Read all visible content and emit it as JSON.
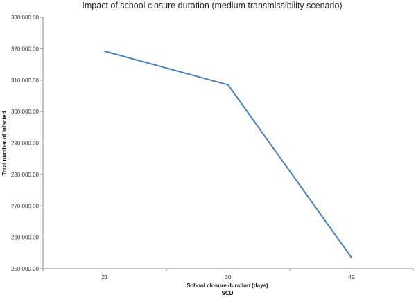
{
  "chart_data": {
    "type": "line",
    "title": "Impact of school closure duration (medium transmissibility scenario)",
    "xlabel": "School closure duration  (days)",
    "xlabel_sub": "SCD",
    "ylabel": "Total number of infected",
    "categories": [
      "21",
      "30",
      "42"
    ],
    "series": [
      {
        "values": [
          319200,
          308500,
          253500
        ]
      }
    ],
    "ylim": [
      250000,
      330000
    ],
    "yticks": [
      "250,000.00",
      "260,000.00",
      "270,000.00",
      "280,000.00",
      "290,000.00",
      "300,000.00",
      "310,000.00",
      "320,000.00",
      "330,000.00"
    ],
    "grid": false,
    "legend": "none",
    "line_color": "#4a7ebb"
  }
}
